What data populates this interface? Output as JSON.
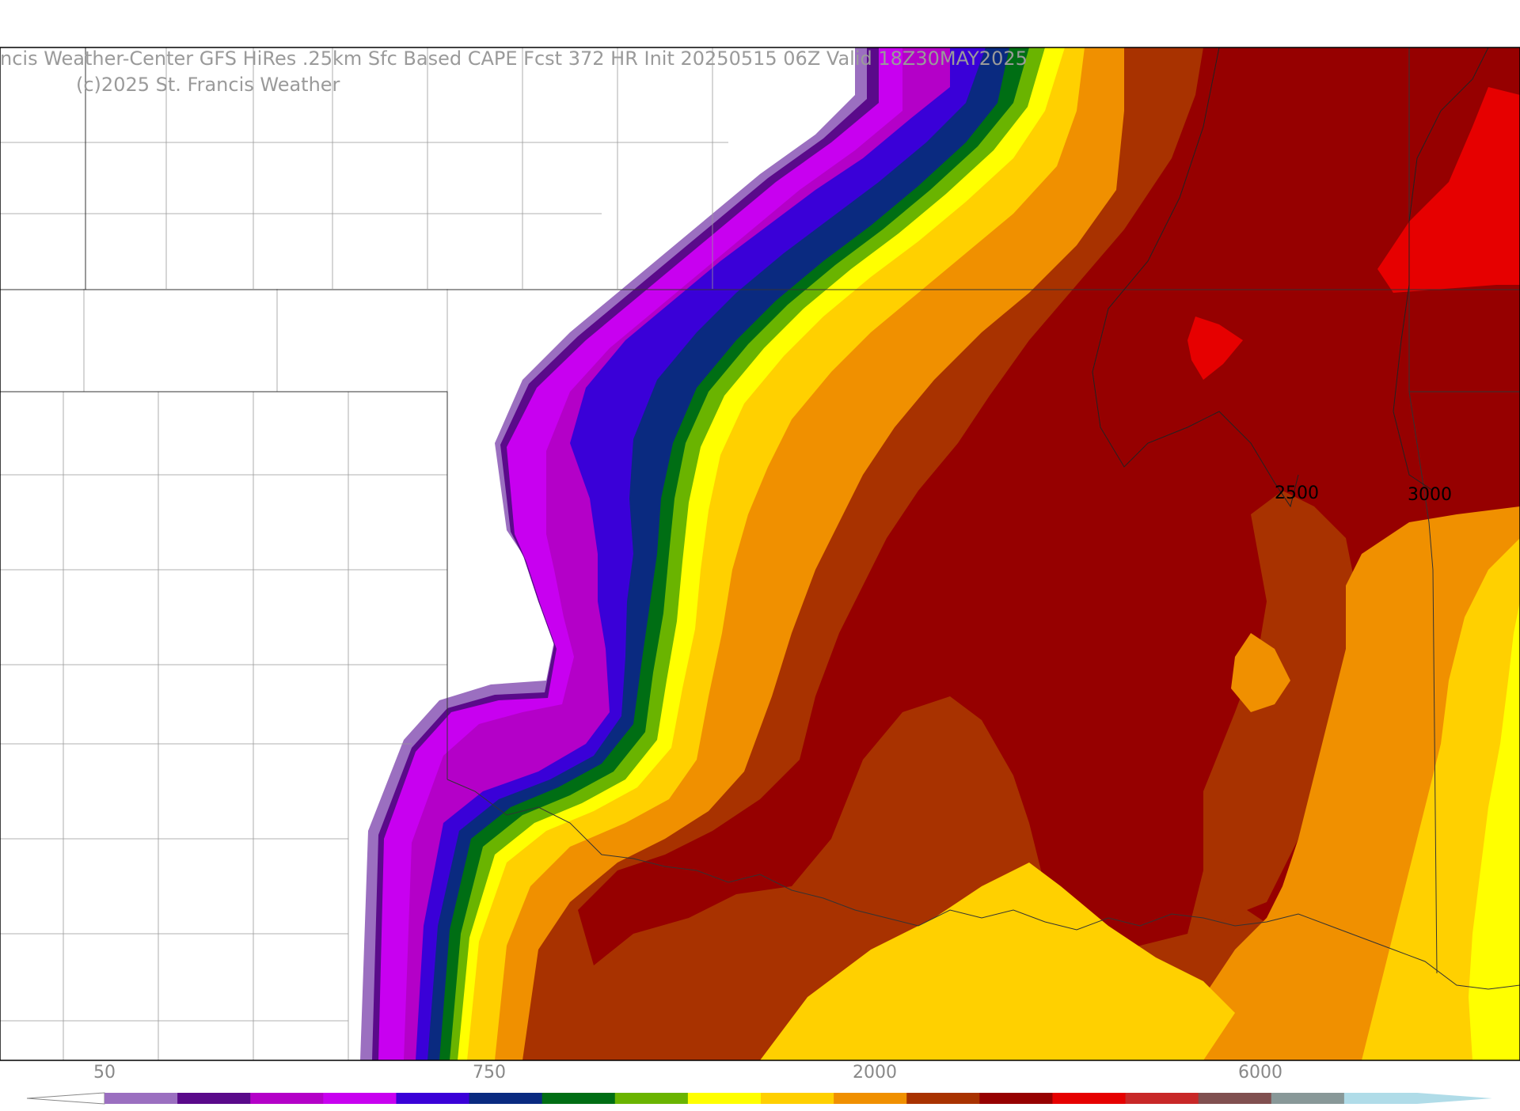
{
  "title": {
    "line1": "ncis Weather-Center GFS HiRes .25km Sfc Based CAPE  Fcst 372 HR Init 20250515 06Z  Valid 18Z30MAY2025",
    "line2": "(c)2025 St. Francis Weather"
  },
  "contour_labels": [
    "2500",
    "3000"
  ],
  "colorbar": {
    "tick_labels": [
      "50",
      "750",
      "2000",
      "6000"
    ],
    "colors": [
      "#9b6fc0",
      "#5a0a8a",
      "#b400c8",
      "#c800f0",
      "#3a00d8",
      "#0a2a80",
      "#006e14",
      "#6ab400",
      "#ffff00",
      "#ffd000",
      "#f09000",
      "#a83200",
      "#960000",
      "#e60000",
      "#c82828",
      "#805050",
      "#889898",
      "#b0dce8"
    ]
  },
  "legend_fill_colors": {
    "outside": "#ffffff",
    "lavender": "#9b6fc0",
    "deep_purple": "#5a0a8a",
    "magenta": "#c800f0",
    "violet": "#b400c8",
    "blue": "#3a00d8",
    "navy": "#0a2a80",
    "dark_green": "#006e14",
    "green": "#6ab400",
    "yellow": "#ffff00",
    "gold": "#ffd000",
    "orange": "#f09000",
    "rust": "#a83200",
    "dark_red": "#960000",
    "red": "#e60000"
  }
}
